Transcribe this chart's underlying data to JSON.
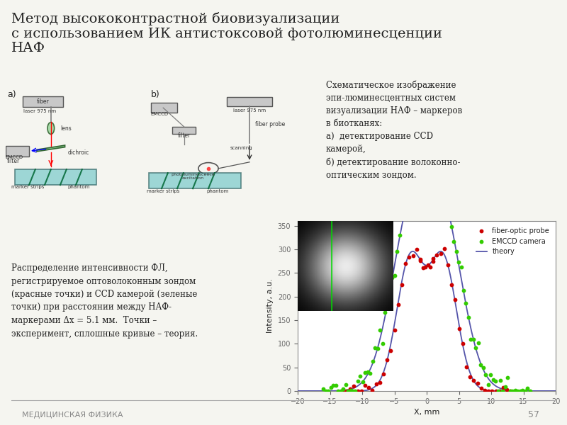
{
  "title_line1": "Метод высококонтрастной биовизуализации",
  "title_line2": "с использованием ИК антистоксовой фотолюминесценции",
  "title_line3": "НАФ",
  "bg_color": "#f5f5f0",
  "text_color": "#222222",
  "footer_text": "МЕДИЦИНСКАЯ ФИЗИКА",
  "page_number": "57",
  "right_text": [
    "Схематическое изображение",
    "эпи-люминесцентных систем",
    "визуализации НАФ – маркеров",
    "в биотканях:",
    "а)  детектирование CCD",
    "камерой,",
    "б) детектирование волоконно-",
    "оптическим зондом."
  ],
  "bottom_left_text": [
    "Распределение интенсивности ФЛ,",
    "регистрируемое оптоволоконным зондом",
    "(красные точки) и CCD камерой (зеленые",
    "точки) при расстоянии между НАФ-",
    "маркерами Δx = 5.1 мм.  Точки –",
    "эксперимент, сплошные кривые – теория."
  ],
  "plot_xlim": [
    -20,
    20
  ],
  "plot_ylim": [
    0,
    360
  ],
  "plot_yticks": [
    0,
    50,
    100,
    150,
    200,
    250,
    300,
    350
  ],
  "plot_xticks": [
    -20,
    -15,
    -10,
    -5,
    0,
    5,
    10,
    15,
    20
  ],
  "plot_xlabel": "X, mm",
  "plot_ylabel": "Intensity, a.u.",
  "legend_entries": [
    "fiber-optic probe",
    "EMCCD camera",
    "theory"
  ],
  "red_color": "#cc0000",
  "green_color": "#33cc00",
  "theory_color": "#5555aa"
}
